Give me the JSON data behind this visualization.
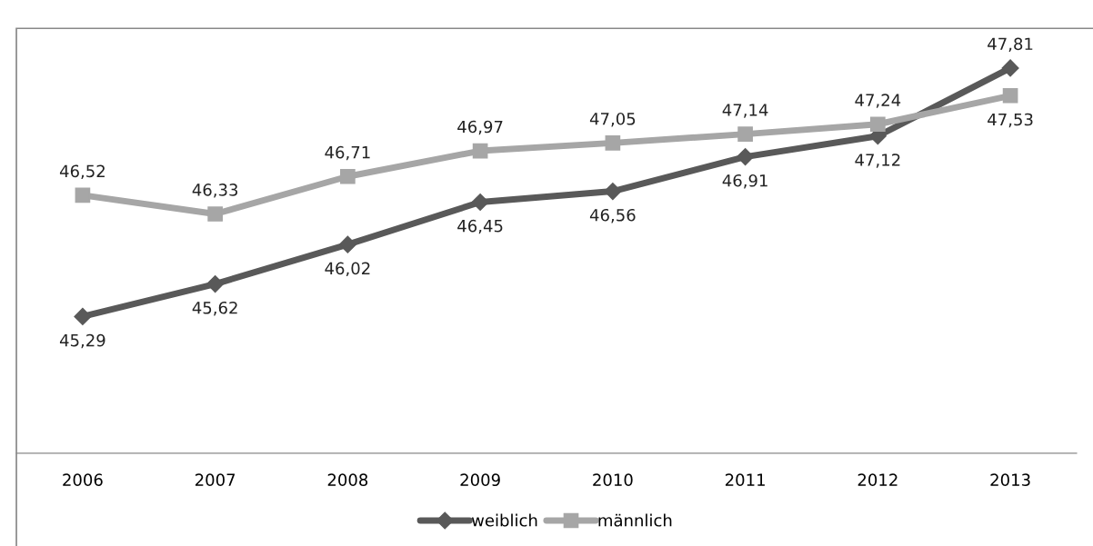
{
  "chart_data": {
    "type": "line",
    "categories": [
      "2006",
      "2007",
      "2008",
      "2009",
      "2010",
      "2011",
      "2012",
      "2013"
    ],
    "series": [
      {
        "name": "weiblich",
        "color": "#595959",
        "marker": "diamond",
        "values": [
          45.29,
          45.62,
          46.02,
          46.45,
          46.56,
          46.91,
          47.12,
          47.81
        ],
        "value_labels": [
          "45,29",
          "45,62",
          "46,02",
          "46,45",
          "46,56",
          "46,91",
          "47,12",
          "47,81"
        ]
      },
      {
        "name": "männlich",
        "color": "#a6a6a6",
        "marker": "square",
        "values": [
          46.52,
          46.33,
          46.71,
          46.97,
          47.05,
          47.14,
          47.24,
          47.53
        ],
        "value_labels": [
          "46,52",
          "46,33",
          "46,71",
          "46,97",
          "47,05",
          "47,14",
          "47,24",
          "47,53"
        ]
      }
    ],
    "tick_labels": "x",
    "grid": false,
    "legend": "bottom",
    "line_style": "solid"
  }
}
